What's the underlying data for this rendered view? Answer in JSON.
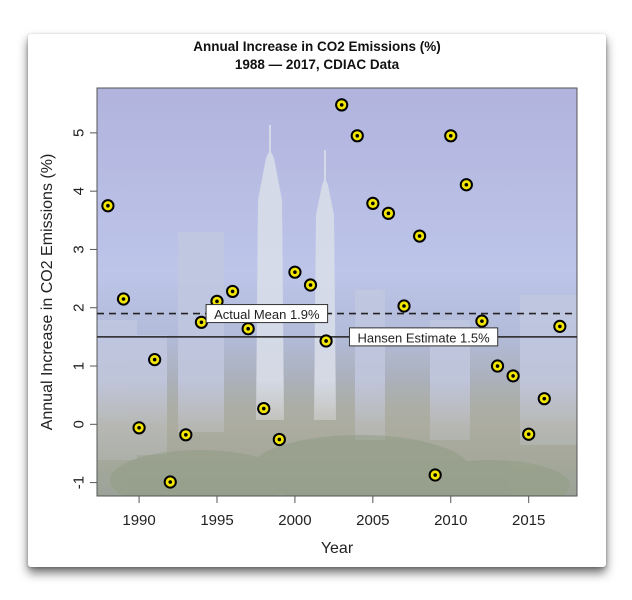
{
  "chart_data": {
    "type": "scatter",
    "title": "Annual Increase in CO2 Emissions (%)",
    "subtitle": "1988 — 2017, CDIAC Data",
    "xlabel": "Year",
    "ylabel": "Annual Increase in CO2 Emissions (%)",
    "xlim": [
      1987.3,
      2018.1
    ],
    "ylim": [
      -1.23,
      5.77
    ],
    "x_ticks": [
      1990,
      1995,
      2000,
      2005,
      2010,
      2015
    ],
    "x_tick_labels": [
      "1990",
      "1995",
      "2000",
      "2005",
      "2010",
      "2015"
    ],
    "y_ticks": [
      -1,
      0,
      1,
      2,
      3,
      4,
      5
    ],
    "y_tick_labels": [
      "-1",
      "0",
      "1",
      "2",
      "3",
      "4",
      "5"
    ],
    "grid": false,
    "background": "faded city skyline photo (Kuala Lumpur, Petronas Towers)",
    "marker_colors": {
      "outer": "#000000",
      "fill": "#f2e600",
      "center": "#000000"
    },
    "series": [
      {
        "name": "Annual increase",
        "points": [
          {
            "x": 1988,
            "y": 3.75
          },
          {
            "x": 1989,
            "y": 2.15
          },
          {
            "x": 1990,
            "y": -0.06
          },
          {
            "x": 1991,
            "y": 1.11
          },
          {
            "x": 1992,
            "y": -0.99
          },
          {
            "x": 1993,
            "y": -0.18
          },
          {
            "x": 1994,
            "y": 1.75
          },
          {
            "x": 1995,
            "y": 2.11
          },
          {
            "x": 1996,
            "y": 2.28
          },
          {
            "x": 1997,
            "y": 1.64
          },
          {
            "x": 1998,
            "y": 0.27
          },
          {
            "x": 1999,
            "y": -0.26
          },
          {
            "x": 2000,
            "y": 2.61
          },
          {
            "x": 2001,
            "y": 2.39
          },
          {
            "x": 2002,
            "y": 1.43
          },
          {
            "x": 2003,
            "y": 5.48
          },
          {
            "x": 2004,
            "y": 4.95
          },
          {
            "x": 2005,
            "y": 3.79
          },
          {
            "x": 2006,
            "y": 3.62
          },
          {
            "x": 2007,
            "y": 2.03
          },
          {
            "x": 2008,
            "y": 3.23
          },
          {
            "x": 2009,
            "y": -0.87
          },
          {
            "x": 2010,
            "y": 4.95
          },
          {
            "x": 2011,
            "y": 4.11
          },
          {
            "x": 2012,
            "y": 1.77
          },
          {
            "x": 2013,
            "y": 1.0
          },
          {
            "x": 2014,
            "y": 0.83
          },
          {
            "x": 2015,
            "y": -0.17
          },
          {
            "x": 2016,
            "y": 0.44
          },
          {
            "x": 2017,
            "y": 1.68
          }
        ]
      }
    ],
    "reference_lines": [
      {
        "name": "actual-mean",
        "y": 1.9,
        "style": "dashed",
        "color": "#222222",
        "label": "Actual Mean 1.9%",
        "label_x": 1994.3
      },
      {
        "name": "hansen-estimate",
        "y": 1.5,
        "style": "solid",
        "color": "#222222",
        "label": "Hansen Estimate 1.5%",
        "label_x": 2003.5
      }
    ]
  }
}
